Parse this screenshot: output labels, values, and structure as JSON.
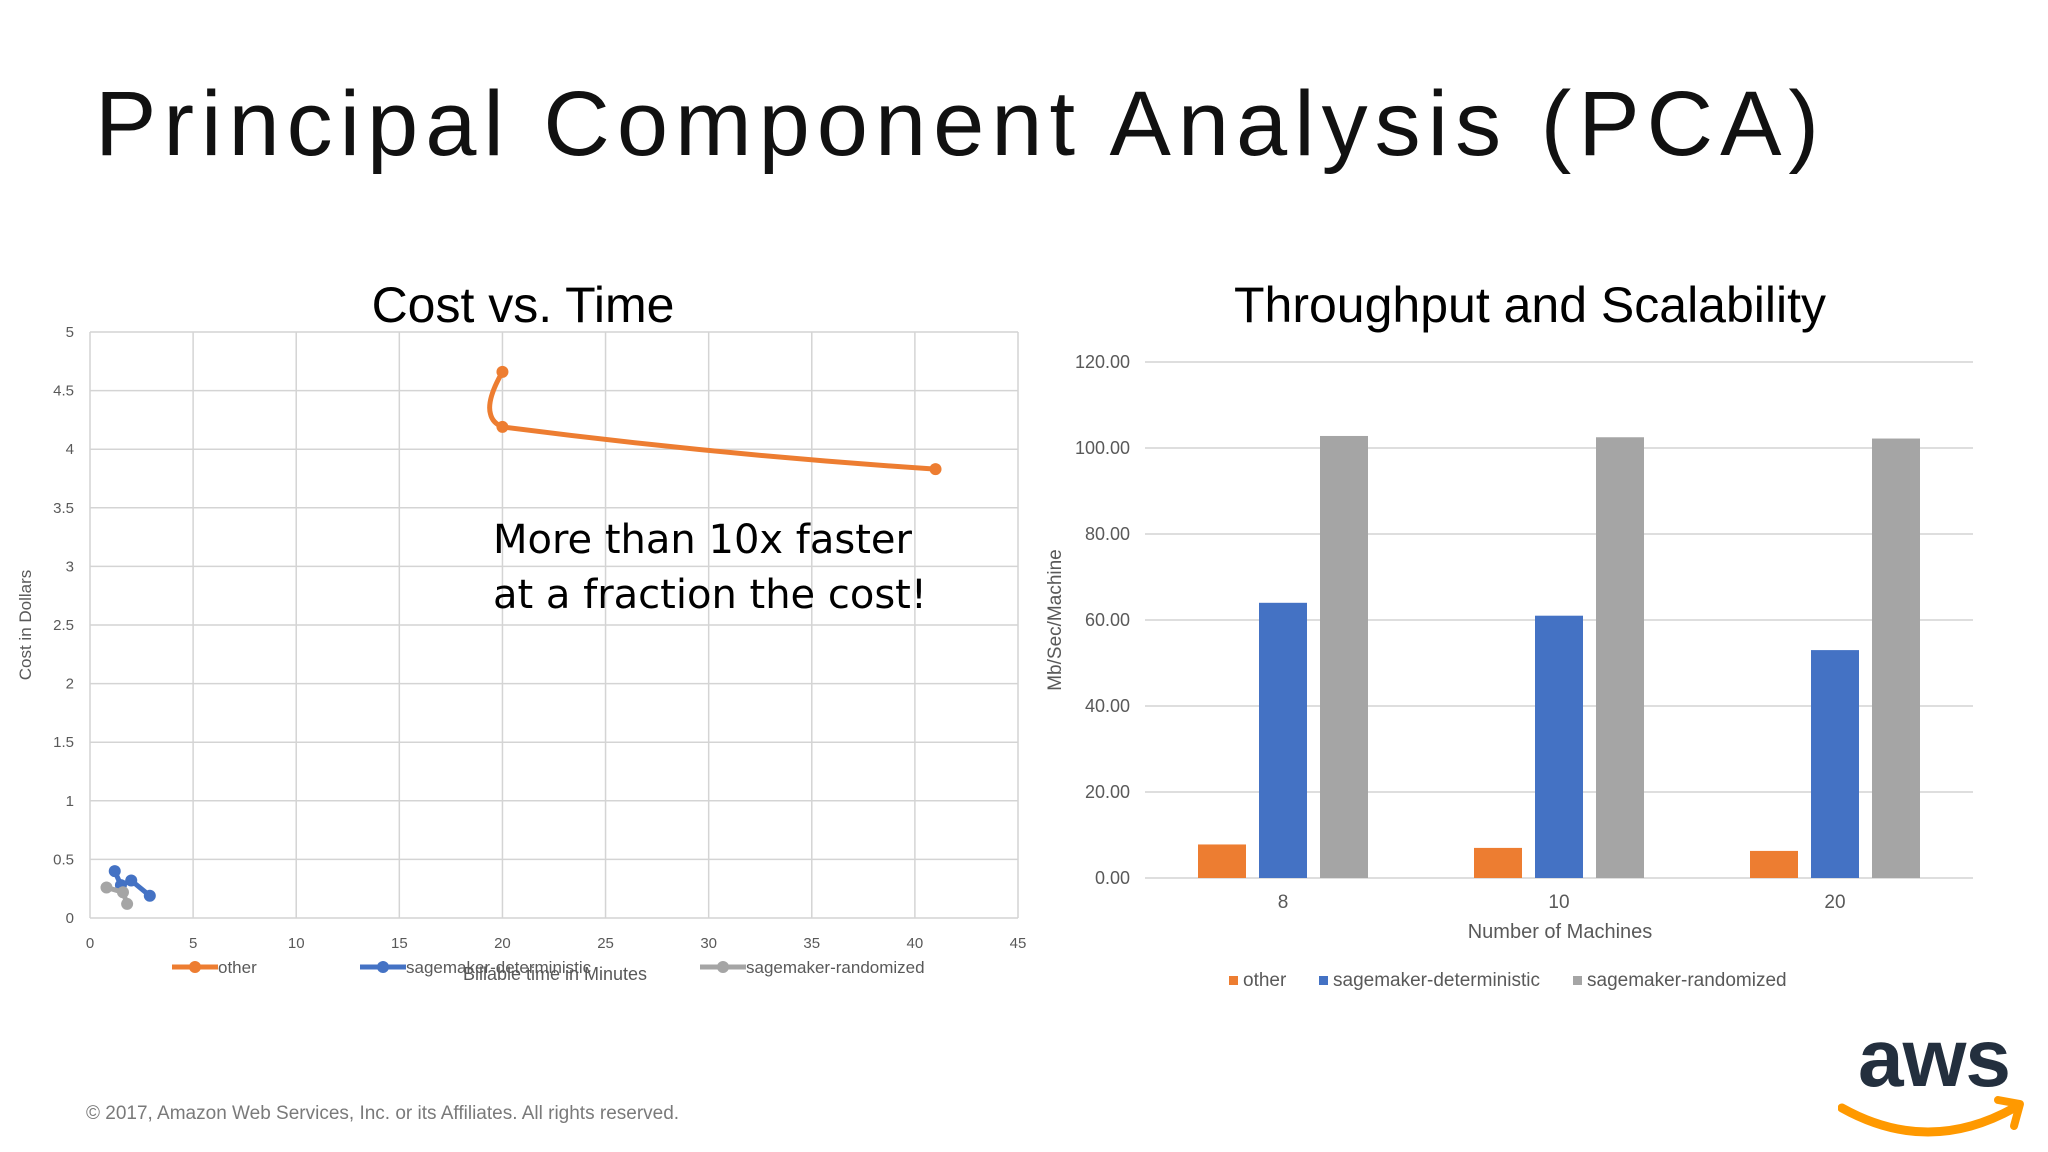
{
  "slide": {
    "title": "Principal Component Analysis (PCA)",
    "copyright": "© 2017, Amazon Web Services, Inc. or its Affiliates. All rights reserved.",
    "logo_text": "aws"
  },
  "colors": {
    "other": "#ED7D31",
    "sagemaker-deterministic": "#4472C4",
    "sagemaker-randomized": "#A5A5A5",
    "grid": "#d4d4d4",
    "text": "#595959"
  },
  "chart_data": [
    {
      "type": "scatter",
      "title": "Cost vs. Time",
      "xlabel": "Billable time in Minutes",
      "ylabel": "Cost in Dollars",
      "xlim": [
        0,
        45
      ],
      "ylim": [
        0,
        5
      ],
      "xticks": [
        "0",
        "5",
        "10",
        "15",
        "20",
        "25",
        "30",
        "35",
        "40",
        "45"
      ],
      "yticks": [
        "0",
        "0.5",
        "1",
        "1.5",
        "2",
        "2.5",
        "3",
        "3.5",
        "4",
        "4.5",
        "5"
      ],
      "grid": true,
      "legend_position": "bottom",
      "annotation": [
        "More than 10x faster",
        "at a fraction the cost!"
      ],
      "series": [
        {
          "name": "other",
          "color_key": "other",
          "points": [
            [
              20,
              4.66
            ],
            [
              20,
              4.19
            ],
            [
              41,
              3.83
            ]
          ]
        },
        {
          "name": "sagemaker-deterministic",
          "color_key": "sagemaker-deterministic",
          "points": [
            [
              1.2,
              0.4
            ],
            [
              1.5,
              0.28
            ],
            [
              2.0,
              0.32
            ],
            [
              2.9,
              0.19
            ]
          ]
        },
        {
          "name": "sagemaker-randomized",
          "color_key": "sagemaker-randomized",
          "points": [
            [
              0.8,
              0.26
            ],
            [
              1.6,
              0.22
            ],
            [
              1.8,
              0.12
            ]
          ]
        }
      ]
    },
    {
      "type": "bar",
      "title": "Throughput and Scalability",
      "xlabel": "Number of Machines",
      "ylabel": "Mb/Sec/Machine",
      "ylim": [
        0,
        120
      ],
      "yticks": [
        "0.00",
        "20.00",
        "40.00",
        "60.00",
        "80.00",
        "100.00",
        "120.00"
      ],
      "categories": [
        "8",
        "10",
        "20"
      ],
      "grid": true,
      "legend_position": "bottom",
      "series": [
        {
          "name": "other",
          "color_key": "other",
          "values": [
            7.8,
            7.0,
            6.3
          ]
        },
        {
          "name": "sagemaker-deterministic",
          "color_key": "sagemaker-deterministic",
          "values": [
            64.0,
            61.0,
            53.0
          ]
        },
        {
          "name": "sagemaker-randomized",
          "color_key": "sagemaker-randomized",
          "values": [
            102.8,
            102.5,
            102.2
          ]
        }
      ]
    }
  ]
}
